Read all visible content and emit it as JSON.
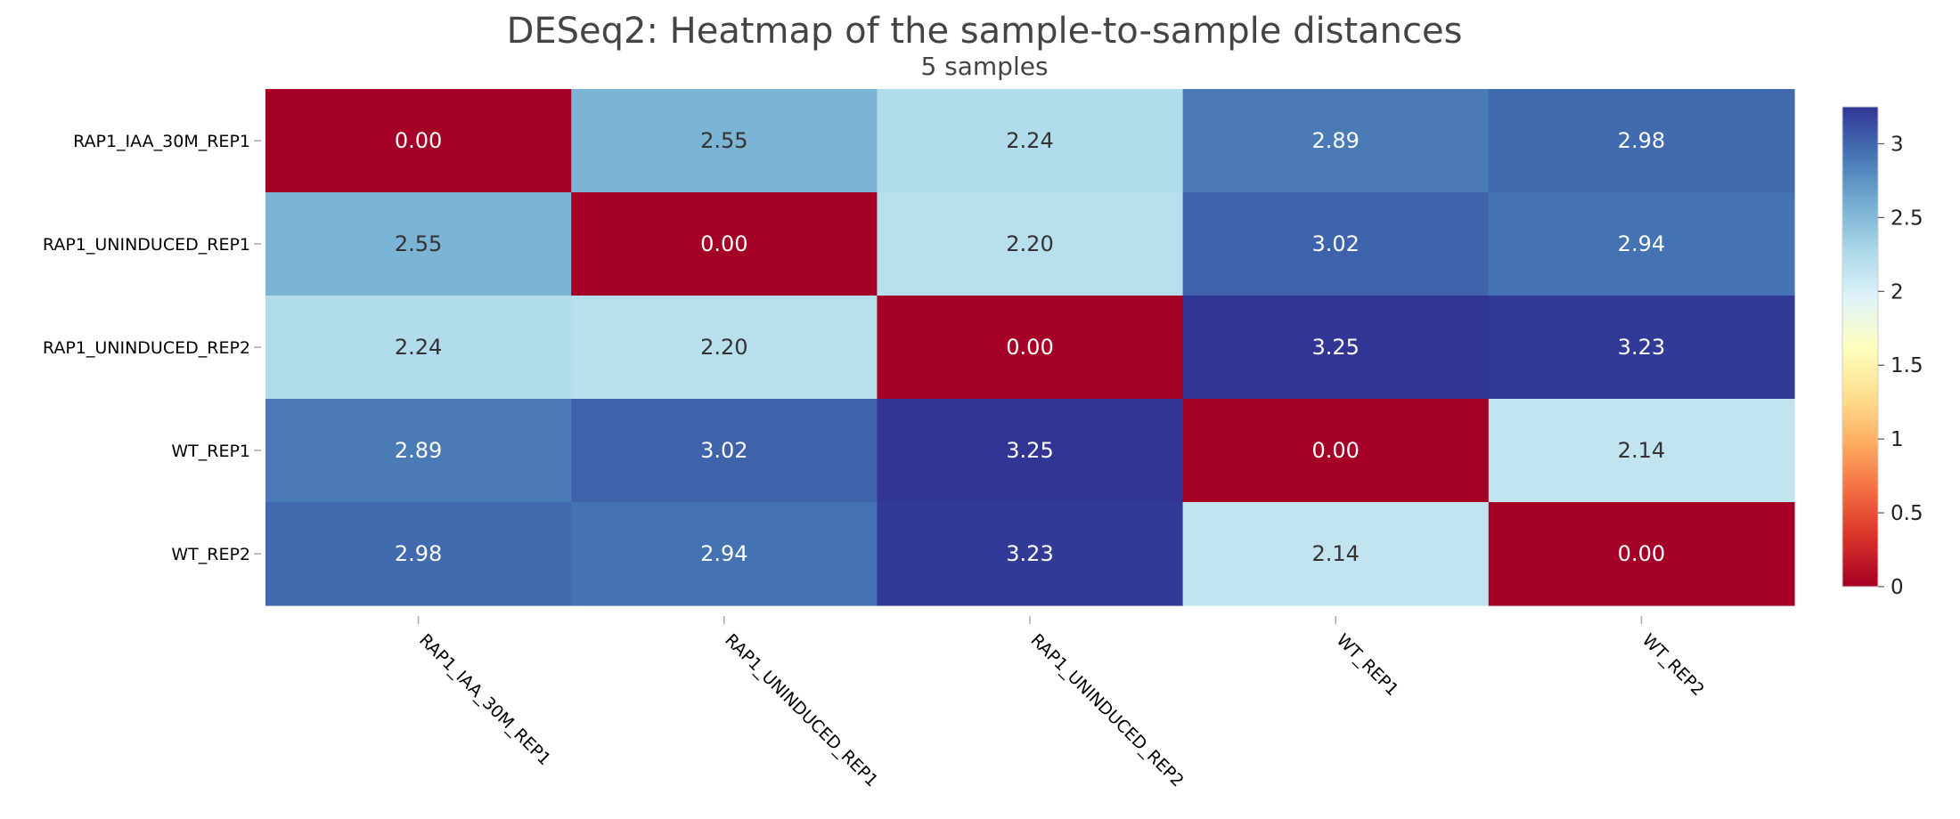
{
  "chart_data": {
    "type": "heatmap",
    "title": "DESeq2: Heatmap of the sample-to-sample distances",
    "subtitle": "5 samples",
    "rows": [
      "RAP1_IAA_30M_REP1",
      "RAP1_UNINDUCED_REP1",
      "RAP1_UNINDUCED_REP2",
      "WT_REP1",
      "WT_REP2"
    ],
    "columns": [
      "RAP1_IAA_30M_REP1",
      "RAP1_UNINDUCED_REP1",
      "RAP1_UNINDUCED_REP2",
      "WT_REP1",
      "WT_REP2"
    ],
    "values": [
      [
        0.0,
        2.55,
        2.24,
        2.89,
        2.98
      ],
      [
        2.55,
        0.0,
        2.2,
        3.02,
        2.94
      ],
      [
        2.24,
        2.2,
        0.0,
        3.25,
        3.23
      ],
      [
        2.89,
        3.02,
        3.25,
        0.0,
        2.14
      ],
      [
        2.98,
        2.94,
        3.23,
        2.14,
        0.0
      ]
    ],
    "value_labels": [
      [
        "0.00",
        "2.55",
        "2.24",
        "2.89",
        "2.98"
      ],
      [
        "2.55",
        "0.00",
        "2.20",
        "3.02",
        "2.94"
      ],
      [
        "2.24",
        "2.20",
        "0.00",
        "3.25",
        "3.23"
      ],
      [
        "2.89",
        "3.02",
        "3.25",
        "0.00",
        "2.14"
      ],
      [
        "2.98",
        "2.94",
        "3.23",
        "2.14",
        "0.00"
      ]
    ],
    "colorbar": {
      "min": 0,
      "max": 3.25,
      "ticks": [
        0,
        0.5,
        1,
        1.5,
        2,
        2.5,
        3
      ],
      "tick_labels": [
        "0",
        "0.5",
        "1",
        "1.5",
        "2",
        "2.5",
        "3"
      ],
      "colorscale": [
        "#a50026",
        "#d73027",
        "#f46d43",
        "#fdae61",
        "#fee090",
        "#ffffbf",
        "#e0f3f8",
        "#abd9e9",
        "#74add1",
        "#4575b4",
        "#313695"
      ]
    },
    "grid": false
  }
}
